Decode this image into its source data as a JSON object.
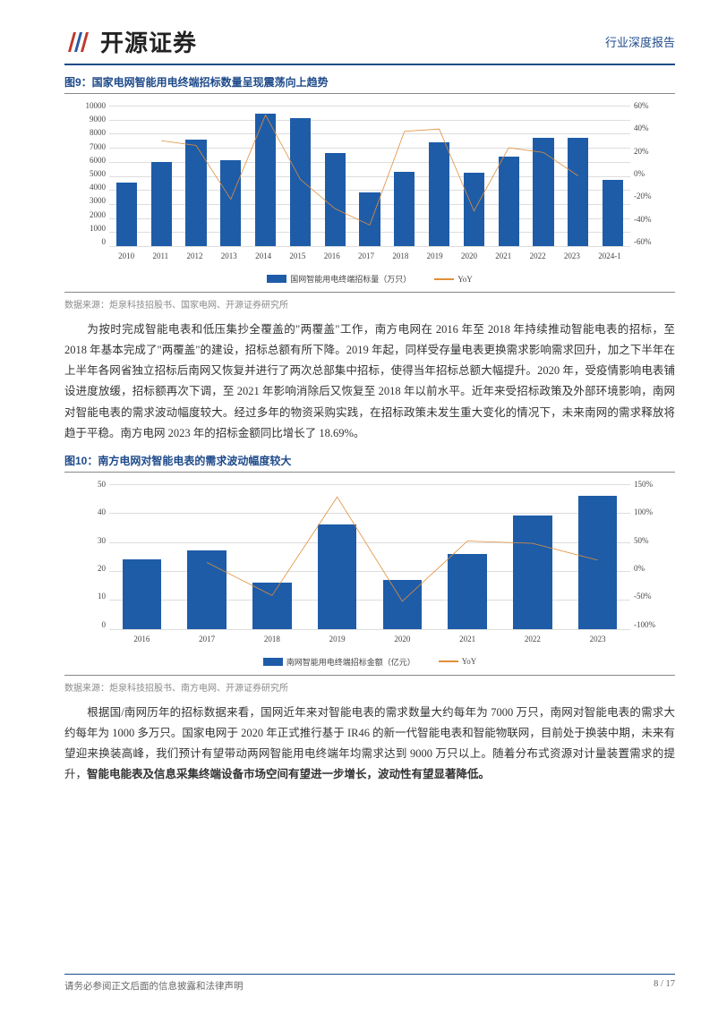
{
  "header": {
    "company_name": "开源证券",
    "doc_type": "行业深度报告"
  },
  "chart9": {
    "title": "图9：国家电网智能用电终端招标数量呈现震荡向上趋势",
    "type": "bar_line",
    "categories": [
      "2010",
      "2011",
      "2012",
      "2013",
      "2014",
      "2015",
      "2016",
      "2017",
      "2018",
      "2019",
      "2020",
      "2021",
      "2022",
      "2023",
      "2024-1"
    ],
    "bar_values": [
      4500,
      6000,
      7600,
      6100,
      9400,
      9100,
      6600,
      3800,
      5300,
      7400,
      5200,
      6400,
      7700,
      7700,
      4700
    ],
    "line_values": [
      null,
      30,
      26,
      -20,
      52,
      -3,
      -28,
      -42,
      38,
      40,
      -30,
      24,
      20,
      0,
      null
    ],
    "left_min": 0,
    "left_max": 10000,
    "left_step": 1000,
    "right_min": -60,
    "right_max": 60,
    "right_step": 20,
    "bar_color": "#1e5ca8",
    "line_color": "#e08f3a",
    "bg": "#ffffff",
    "grid_color": "#dddddd",
    "legend_bar": "国网智能用电终端招标量（万只）",
    "legend_line": "YoY",
    "source": "数据来源：炬泉科技招股书、国家电网、开源证券研究所"
  },
  "para1": "为按时完成智能电表和低压集抄全覆盖的\"两覆盖\"工作，南方电网在 2016 年至 2018 年持续推动智能电表的招标，至 2018 年基本完成了\"两覆盖\"的建设，招标总额有所下降。2019 年起，同样受存量电表更换需求影响需求回升，加之下半年在上半年各网省独立招标后南网又恢复并进行了两次总部集中招标，使得当年招标总额大幅提升。2020 年，受疫情影响电表铺设进度放缓，招标额再次下调，至 2021 年影响消除后又恢复至 2018 年以前水平。近年来受招标政策及外部环境影响，南网对智能电表的需求波动幅度较大。经过多年的物资采购实践，在招标政策未发生重大变化的情况下，未来南网的需求释放将趋于平稳。南方电网 2023 年的招标金额同比增长了 18.69%。",
  "chart10": {
    "title": "图10：南方电网对智能电表的需求波动幅度较大",
    "type": "bar_line",
    "categories": [
      "2016",
      "2017",
      "2018",
      "2019",
      "2020",
      "2021",
      "2022",
      "2023"
    ],
    "bar_values": [
      24,
      27,
      16,
      36,
      17,
      26,
      39,
      46
    ],
    "line_values": [
      null,
      15,
      -42,
      128,
      -52,
      52,
      48,
      19
    ],
    "left_min": 0,
    "left_max": 50,
    "left_step": 10,
    "right_min": -100,
    "right_max": 150,
    "right_step": 50,
    "bar_color": "#1e5ca8",
    "line_color": "#e08f3a",
    "bg": "#ffffff",
    "grid_color": "#dddddd",
    "legend_bar": "南网智能用电终端招标金额（亿元）",
    "legend_line": "YoY",
    "source": "数据来源：炬泉科技招股书、南方电网、开源证券研究所"
  },
  "para2_a": "根据国/南网历年的招标数据来看，国网近年来对智能电表的需求数量大约每年为 7000 万只，南网对智能电表的需求大约每年为 1000 多万只。国家电网于 2020 年正式推行基于 IR46 的新一代智能电表和智能物联网，目前处于换装中期，未来有望迎来换装高峰，我们预计有望带动两网智能用电终端年均需求达到 9000 万只以上。随着分布式资源对计量装置需求的提升，",
  "para2_b": "智能电能表及信息采集终端设备市场空间有望进一步增长，波动性有望显著降低。",
  "footer": {
    "left": "请务必参阅正文后面的信息披露和法律声明",
    "right": "8 / 17"
  }
}
